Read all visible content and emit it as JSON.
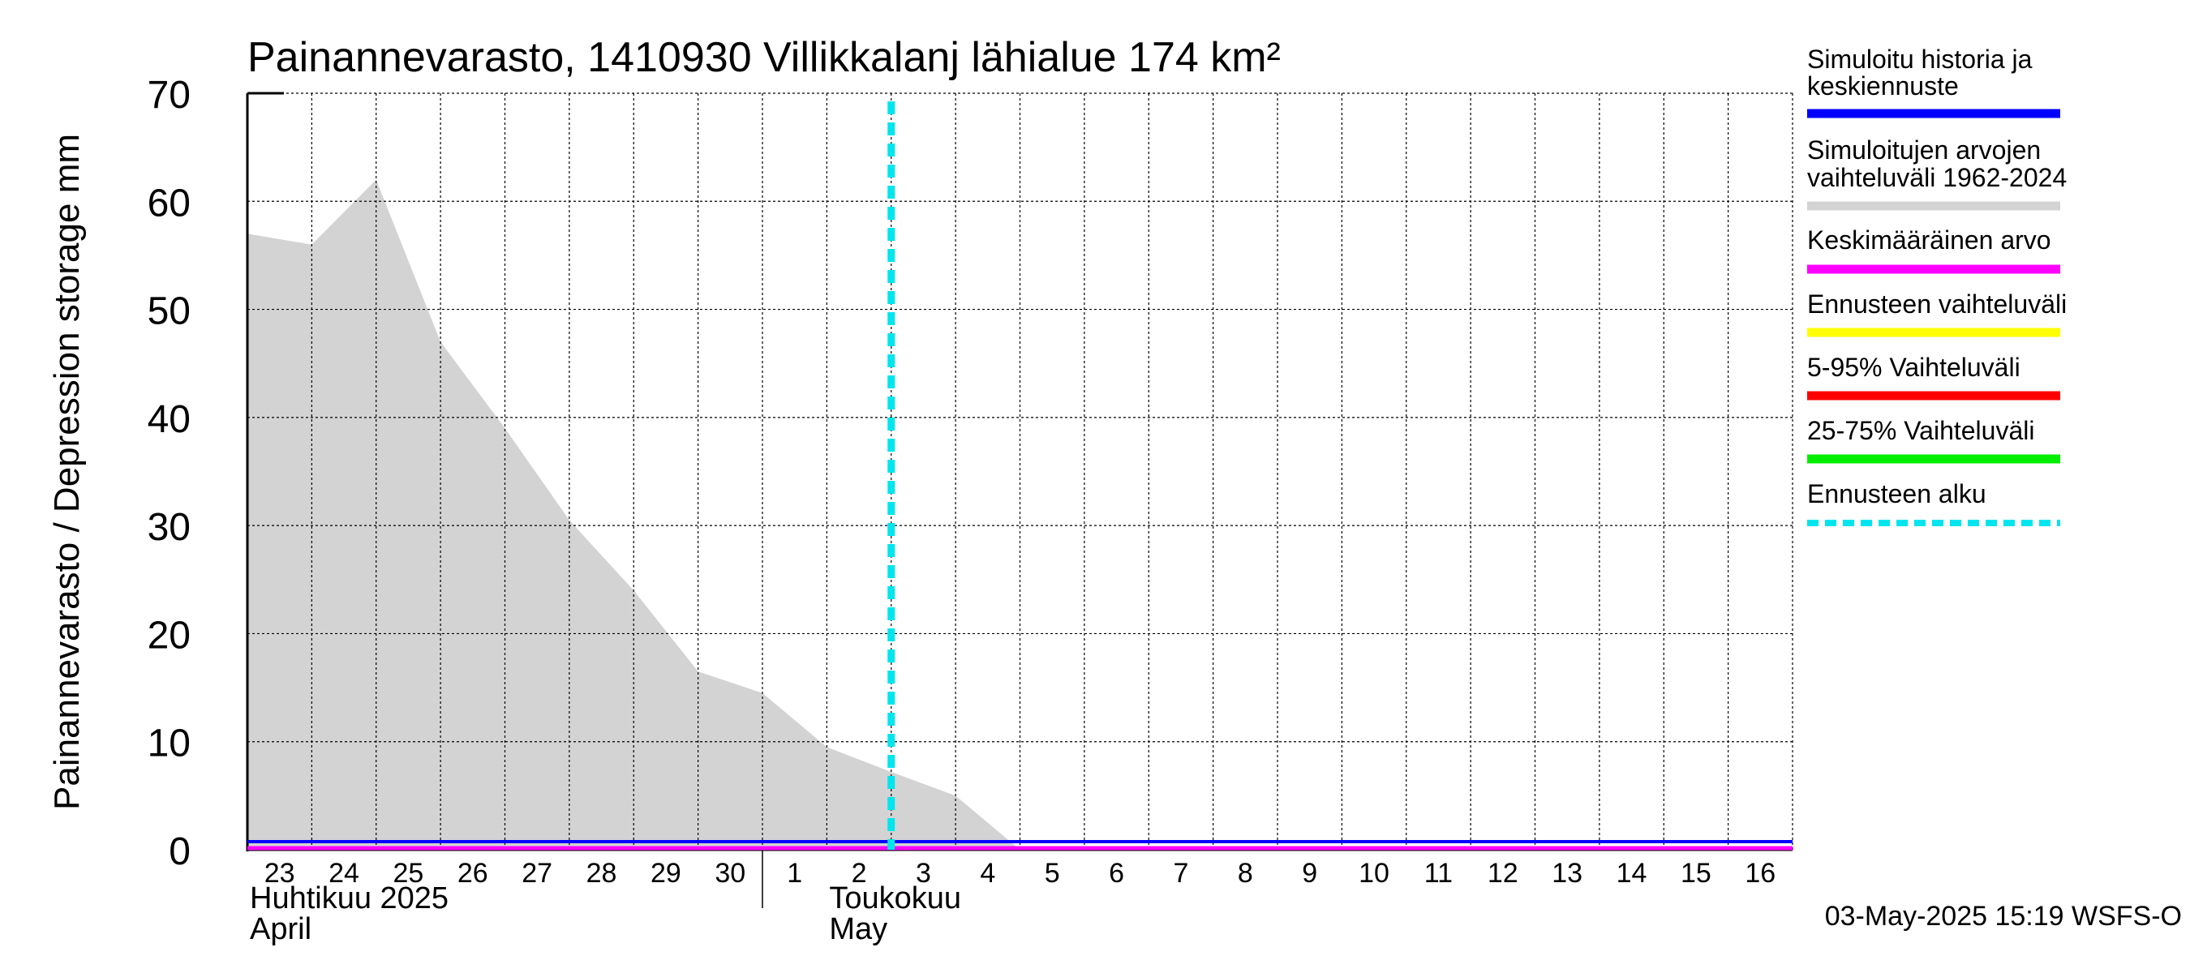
{
  "chart_data": {
    "type": "area",
    "title": "Painannevarasto, 1410930 Villikkalanj lähialue 174 km²",
    "ylabel": "Painannevarasto / Depression storage    mm",
    "ylim": [
      0,
      70
    ],
    "y_ticks": [
      0,
      10,
      20,
      30,
      40,
      50,
      60,
      70
    ],
    "x_start": "2025-04-23",
    "x_end": "2025-05-17",
    "x_tick_labels": [
      "23",
      "24",
      "25",
      "26",
      "27",
      "28",
      "29",
      "30",
      "1",
      "2",
      "3",
      "4",
      "5",
      "6",
      "7",
      "8",
      "9",
      "10",
      "11",
      "12",
      "13",
      "14",
      "15",
      "16"
    ],
    "month_labels": [
      {
        "line1": "Huhtikuu  2025",
        "line2": "April",
        "date": "2025-04-23"
      },
      {
        "line1": "Toukokuu",
        "line2": "May",
        "date": "2025-05-02"
      }
    ],
    "grid": true,
    "forecast_start": "2025-05-03",
    "series": [
      {
        "name": "Simuloitujen arvojen vaihteluväli 1962-2024",
        "kind": "range",
        "color": "#d3d3d3",
        "x": [
          "2025-04-23",
          "2025-04-24",
          "2025-04-25",
          "2025-04-26",
          "2025-04-27",
          "2025-04-28",
          "2025-04-29",
          "2025-04-30",
          "2025-05-01",
          "2025-05-02",
          "2025-05-03",
          "2025-05-04",
          "2025-05-05",
          "2025-05-17"
        ],
        "upper": [
          57,
          56,
          62,
          47,
          39,
          30.5,
          24,
          16.5,
          14.5,
          9.5,
          7.2,
          5,
          0,
          0
        ],
        "lower": [
          0,
          0,
          0,
          0,
          0,
          0,
          0,
          0,
          0,
          0,
          0,
          0,
          0,
          0
        ]
      },
      {
        "name": "Simuloitu historia ja keskiennuste",
        "kind": "line",
        "color": "#0000ff",
        "x": [
          "2025-04-23",
          "2025-05-17"
        ],
        "values": [
          0.3,
          0.3
        ]
      },
      {
        "name": "Keskimääräinen arvo",
        "kind": "line",
        "color": "#ff00ff",
        "x": [
          "2025-04-23",
          "2025-05-17"
        ],
        "values": [
          0,
          0
        ]
      }
    ],
    "legend": {
      "position": "right",
      "entries": [
        {
          "label": "Simuloitu historia ja keskiennuste",
          "color": "#0000ff",
          "style": "solid"
        },
        {
          "label": "Simuloitujen arvojen vaihteluväli 1962-2024",
          "color": "#d3d3d3",
          "style": "solid"
        },
        {
          "label": "Keskimääräinen arvo",
          "color": "#ff00ff",
          "style": "solid"
        },
        {
          "label": "Ennusteen vaihteluväli",
          "color": "#ffff00",
          "style": "solid"
        },
        {
          "label": "5-95% Vaihteluväli",
          "color": "#ff0000",
          "style": "solid"
        },
        {
          "label": "25-75% Vaihteluväli",
          "color": "#00ee00",
          "style": "solid"
        },
        {
          "label": "Ennusteen alku",
          "color": "#00e5ee",
          "style": "dashed"
        }
      ]
    },
    "footer": "03-May-2025 15:19 WSFS-O"
  }
}
